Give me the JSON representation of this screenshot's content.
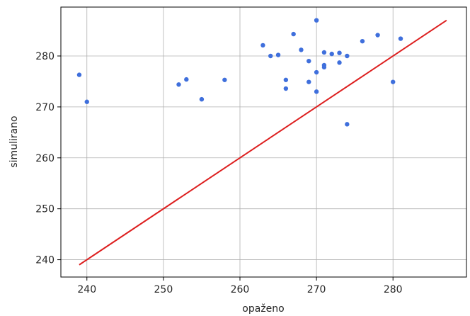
{
  "chart_data": {
    "type": "scatter",
    "title": "",
    "xlabel": "opaženo",
    "ylabel": "simulirano",
    "xlim": [
      236.6,
      289.6
    ],
    "ylim": [
      236.6,
      289.6
    ],
    "xticks": [
      240,
      250,
      260,
      270,
      280
    ],
    "yticks": [
      240,
      250,
      260,
      270,
      280
    ],
    "grid": true,
    "point_color": "#3f6fdc",
    "line_color": "#dd1f1f",
    "reference_line": {
      "x": [
        239,
        287
      ],
      "y": [
        239,
        287
      ]
    },
    "series": [
      {
        "x": [
          239,
          240,
          252,
          253,
          255,
          258,
          263,
          264,
          265,
          266,
          266,
          267,
          268,
          269,
          269,
          270,
          270,
          270,
          271,
          271,
          271,
          272,
          273,
          273,
          274,
          274,
          276,
          278,
          280,
          281
        ],
        "y": [
          276.3,
          271.0,
          274.4,
          275.4,
          271.5,
          275.3,
          282.1,
          280.0,
          280.2,
          275.3,
          273.6,
          284.3,
          281.2,
          279.0,
          274.9,
          287.0,
          276.8,
          273.0,
          280.7,
          278.2,
          277.8,
          280.4,
          280.6,
          278.7,
          280.0,
          266.6,
          282.9,
          284.1,
          274.9,
          283.4
        ]
      }
    ]
  }
}
